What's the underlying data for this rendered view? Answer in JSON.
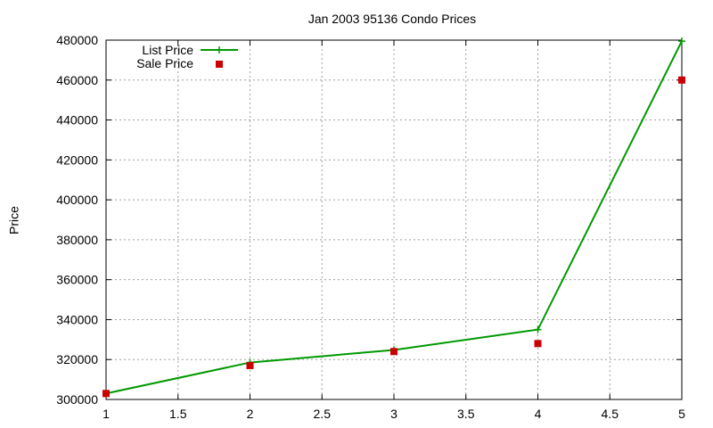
{
  "chart_data": {
    "type": "line",
    "title": "Jan 2003 95136 Condo Prices",
    "xlabel": "",
    "ylabel": "Price",
    "xlim": [
      1,
      5
    ],
    "ylim": [
      300000,
      480000
    ],
    "xticks": [
      1,
      1.5,
      2,
      2.5,
      3,
      3.5,
      4,
      4.5,
      5
    ],
    "xtick_labels": [
      "1",
      "1.5",
      "2",
      "2.5",
      "3",
      "3.5",
      "4",
      "4.5",
      "5"
    ],
    "yticks": [
      300000,
      320000,
      340000,
      360000,
      380000,
      400000,
      420000,
      440000,
      460000,
      480000
    ],
    "ytick_labels": [
      "300000",
      "320000",
      "340000",
      "360000",
      "380000",
      "400000",
      "420000",
      "440000",
      "460000",
      "480000"
    ],
    "grid": true,
    "legend_position": "top-left",
    "series": [
      {
        "name": "List Price",
        "style": "linespoints",
        "marker": "plus",
        "color": "#009900",
        "x": [
          1,
          2,
          3,
          4,
          5
        ],
        "y": [
          303000,
          318500,
          324800,
          335000,
          479500
        ]
      },
      {
        "name": "Sale Price",
        "style": "points",
        "marker": "square",
        "color": "#cc0000",
        "x": [
          1,
          2,
          3,
          4,
          5
        ],
        "y": [
          303000,
          317000,
          324000,
          328000,
          460000
        ]
      }
    ]
  }
}
